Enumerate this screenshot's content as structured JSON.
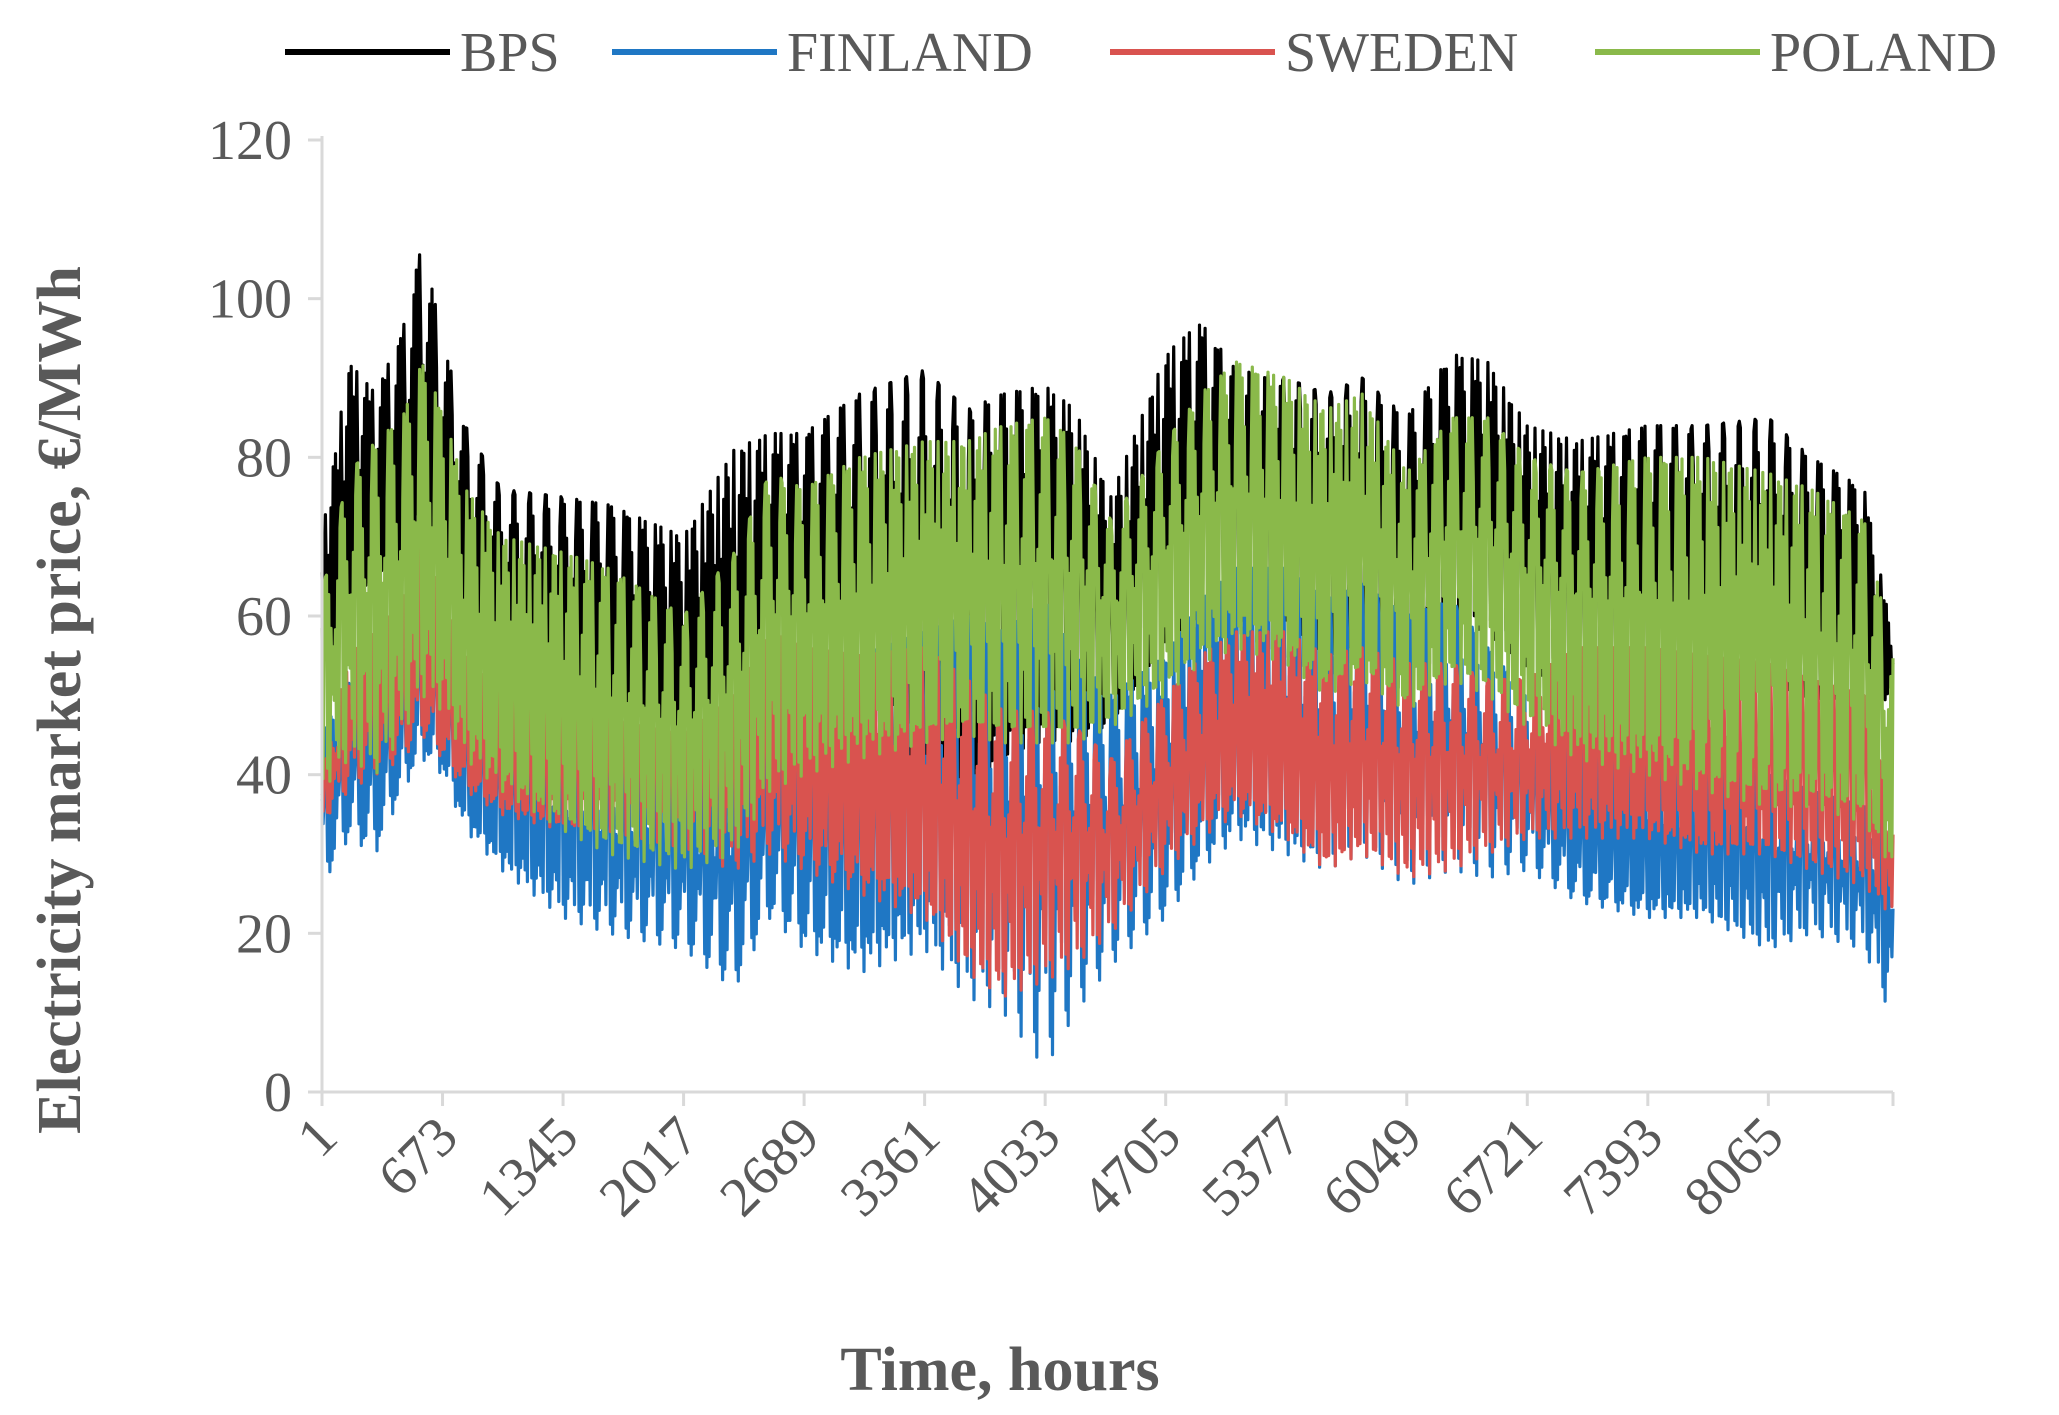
{
  "chart_data": {
    "type": "line",
    "title": "",
    "xlabel": "Time, hours",
    "ylabel": "Electricity market price, €/MWh",
    "ylim": [
      0,
      120
    ],
    "xlim": [
      1,
      8760
    ],
    "yticks": [
      0,
      20,
      40,
      60,
      80,
      100,
      120
    ],
    "xtick_labels": [
      "1",
      "673",
      "1345",
      "2017",
      "2689",
      "3361",
      "4033",
      "4705",
      "5377",
      "6049",
      "6721",
      "7393",
      "8065"
    ],
    "xtick_values": [
      1,
      673,
      1345,
      2017,
      2689,
      3361,
      4033,
      4705,
      5377,
      6049,
      6721,
      7393,
      8065
    ],
    "grid": false,
    "legend_position": "top",
    "series": [
      {
        "name": "BPS",
        "color": "#000000",
        "envelope": {
          "x": [
            1,
            150,
            300,
            450,
            560,
            673,
            800,
            1000,
            1345,
            1600,
            2017,
            2300,
            2500,
            2689,
            3000,
            3361,
            3600,
            3800,
            4033,
            4200,
            4400,
            4705,
            4900,
            5100,
            5377,
            5600,
            5800,
            6049,
            6300,
            6500,
            6721,
            7000,
            7393,
            7700,
            8065,
            8300,
            8600,
            8760
          ],
          "high": [
            70,
            92,
            88,
            96,
            107,
            95,
            84,
            76,
            75,
            74,
            70,
            81,
            83,
            83,
            88,
            91,
            86,
            88,
            89,
            86,
            75,
            93,
            97,
            91,
            90,
            88,
            90,
            85,
            93,
            92,
            84,
            82,
            84,
            84,
            85,
            80,
            76,
            57
          ],
          "low": [
            50,
            60,
            64,
            66,
            72,
            66,
            58,
            50,
            48,
            46,
            40,
            40,
            48,
            52,
            45,
            40,
            38,
            40,
            42,
            42,
            45,
            55,
            58,
            58,
            55,
            52,
            55,
            50,
            58,
            56,
            52,
            48,
            48,
            48,
            50,
            48,
            48,
            50
          ]
        }
      },
      {
        "name": "FINLAND",
        "color": "#1f77c4",
        "envelope": {
          "x": [
            1,
            150,
            300,
            450,
            560,
            673,
            800,
            1000,
            1345,
            1600,
            2017,
            2300,
            2500,
            2689,
            3000,
            3361,
            3600,
            3800,
            4033,
            4200,
            4400,
            4705,
            4900,
            5100,
            5377,
            5600,
            5800,
            6049,
            6300,
            6500,
            6721,
            7000,
            7393,
            7700,
            8065,
            8300,
            8600,
            8760
          ],
          "high": [
            45,
            52,
            55,
            58,
            65,
            60,
            52,
            48,
            45,
            42,
            40,
            42,
            50,
            52,
            55,
            58,
            60,
            58,
            62,
            55,
            50,
            55,
            62,
            66,
            66,
            62,
            64,
            60,
            62,
            56,
            50,
            44,
            42,
            42,
            40,
            38,
            36,
            33
          ],
          "low": [
            26,
            32,
            30,
            38,
            42,
            40,
            33,
            28,
            22,
            20,
            18,
            13,
            22,
            18,
            15,
            18,
            12,
            10,
            3,
            10,
            16,
            22,
            28,
            32,
            30,
            28,
            30,
            26,
            28,
            27,
            28,
            24,
            22,
            22,
            18,
            20,
            18,
            9
          ]
        }
      },
      {
        "name": "SWEDEN",
        "color": "#d9534f",
        "envelope": {
          "x": [
            1,
            150,
            300,
            450,
            560,
            673,
            800,
            1000,
            1345,
            1600,
            2017,
            2300,
            2500,
            2689,
            3000,
            3361,
            3600,
            3800,
            4033,
            4200,
            4400,
            4705,
            4900,
            5100,
            5377,
            5600,
            5800,
            6049,
            6300,
            6500,
            6721,
            7000,
            7393,
            7700,
            8065,
            8300,
            8600,
            8760
          ],
          "high": [
            40,
            55,
            58,
            62,
            70,
            62,
            55,
            50,
            48,
            47,
            45,
            50,
            58,
            56,
            55,
            56,
            52,
            48,
            48,
            46,
            42,
            50,
            55,
            58,
            58,
            55,
            56,
            54,
            54,
            52,
            52,
            56,
            56,
            55,
            54,
            52,
            50,
            35
          ],
          "low": [
            34,
            38,
            40,
            42,
            45,
            42,
            38,
            35,
            33,
            32,
            30,
            28,
            30,
            28,
            25,
            22,
            15,
            12,
            14,
            16,
            20,
            28,
            32,
            35,
            32,
            28,
            30,
            27,
            28,
            30,
            32,
            32,
            32,
            30,
            30,
            28,
            26,
            22
          ]
        }
      },
      {
        "name": "POLAND",
        "color": "#8ab94a",
        "envelope": {
          "x": [
            1,
            150,
            300,
            450,
            560,
            673,
            800,
            1000,
            1345,
            1600,
            2017,
            2300,
            2500,
            2689,
            3000,
            3361,
            3600,
            3800,
            4033,
            4200,
            4400,
            4705,
            4900,
            5100,
            5377,
            5600,
            5800,
            6049,
            6300,
            6500,
            6721,
            7000,
            7393,
            7700,
            8065,
            8300,
            8600,
            8760
          ],
          "high": [
            63,
            78,
            82,
            85,
            92,
            86,
            76,
            70,
            68,
            66,
            60,
            68,
            78,
            76,
            80,
            82,
            82,
            84,
            85,
            82,
            72,
            82,
            88,
            92,
            90,
            86,
            88,
            78,
            85,
            85,
            80,
            78,
            80,
            80,
            78,
            76,
            72,
            55
          ],
          "low": [
            38,
            42,
            40,
            45,
            50,
            48,
            42,
            38,
            33,
            30,
            28,
            30,
            38,
            40,
            42,
            44,
            45,
            44,
            44,
            44,
            46,
            50,
            54,
            56,
            54,
            50,
            52,
            48,
            52,
            50,
            46,
            42,
            40,
            38,
            36,
            36,
            34,
            28
          ]
        }
      }
    ]
  }
}
